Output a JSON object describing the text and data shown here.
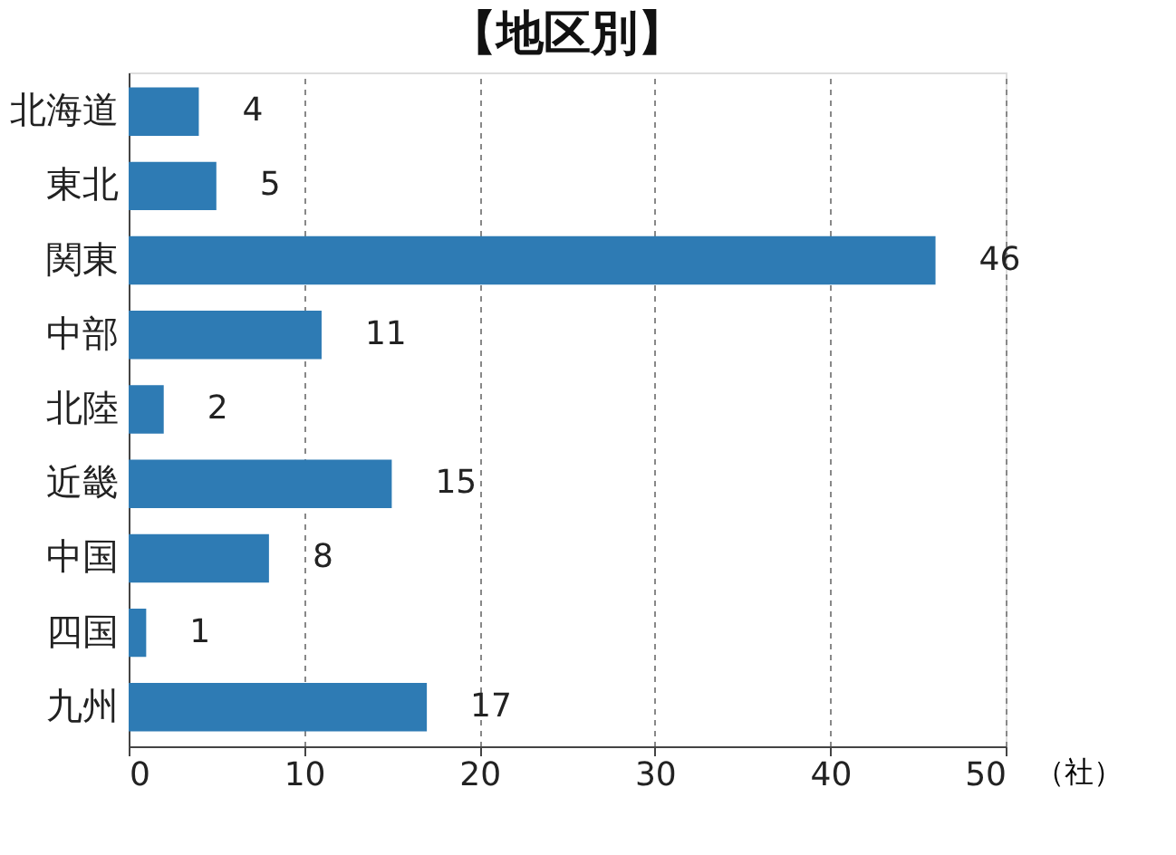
{
  "chart_data": {
    "type": "bar",
    "orientation": "horizontal",
    "title": "【地区別】",
    "xlabel": "（社）",
    "categories": [
      "北海道",
      "東北",
      "関東",
      "中部",
      "北陸",
      "近畿",
      "中国",
      "四国",
      "九州"
    ],
    "values": [
      4,
      5,
      46,
      11,
      2,
      15,
      8,
      1,
      17
    ],
    "color": "#2e7bb4",
    "xlim": [
      0,
      50
    ],
    "xticks": [
      0,
      10,
      20,
      30,
      40,
      50
    ],
    "grid": "x",
    "data_labels": true
  }
}
